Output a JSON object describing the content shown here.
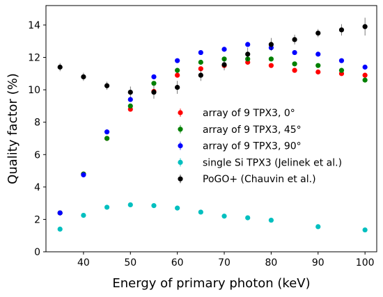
{
  "chart_data": {
    "type": "scatter",
    "xlabel": "Energy of primary photon (keV)",
    "ylabel": "Quality factor (%)",
    "xlim": [
      32,
      102.5
    ],
    "ylim": [
      0,
      15.2
    ],
    "x_ticks": [
      "40",
      "50",
      "60",
      "70",
      "80",
      "90",
      "100"
    ],
    "y_ticks": [
      "0",
      "2",
      "4",
      "6",
      "8",
      "10",
      "12",
      "14"
    ],
    "grid": false,
    "legend_position": "center-right",
    "series": [
      {
        "name": "array of 9 TPX3, 0$^\\circ$",
        "label": "array of 9 TPX3, 0°",
        "color": "#ff0000",
        "x": [
          35,
          40,
          45,
          50,
          55,
          60,
          65,
          70,
          75,
          80,
          85,
          90,
          95,
          100
        ],
        "y": [
          2.4,
          4.8,
          7.0,
          8.8,
          9.9,
          10.9,
          11.3,
          11.5,
          11.7,
          11.5,
          11.2,
          11.1,
          11.0,
          10.9
        ],
        "err": [
          0.05,
          0.08,
          0.1,
          0.1,
          0.1,
          0.1,
          0.1,
          0.1,
          0.1,
          0.1,
          0.1,
          0.1,
          0.1,
          0.1
        ]
      },
      {
        "name": "array of 9 TPX3, 45$^\\circ$",
        "label": "array of 9 TPX3, 45°",
        "color": "#008000",
        "x": [
          35,
          40,
          45,
          50,
          55,
          60,
          65,
          70,
          75,
          80,
          85,
          90,
          95,
          100
        ],
        "y": [
          2.4,
          4.8,
          7.0,
          9.0,
          10.4,
          11.2,
          11.7,
          11.9,
          11.9,
          11.9,
          11.6,
          11.5,
          11.2,
          10.6
        ],
        "err": [
          0.05,
          0.08,
          0.1,
          0.1,
          0.1,
          0.1,
          0.1,
          0.1,
          0.1,
          0.1,
          0.1,
          0.1,
          0.1,
          0.1
        ]
      },
      {
        "name": "array of 9 TPX3, 90$^\\circ$",
        "label": "array of 9 TPX3, 90°",
        "color": "#0000ff",
        "x": [
          35,
          40,
          45,
          50,
          55,
          60,
          65,
          70,
          75,
          80,
          85,
          90,
          95,
          100
        ],
        "y": [
          2.4,
          4.75,
          7.4,
          9.4,
          10.8,
          11.8,
          12.3,
          12.5,
          12.8,
          12.6,
          12.3,
          12.2,
          11.8,
          11.4
        ],
        "err": [
          0.05,
          0.08,
          0.1,
          0.1,
          0.1,
          0.1,
          0.1,
          0.1,
          0.1,
          0.1,
          0.1,
          0.1,
          0.1,
          0.1
        ]
      },
      {
        "name": "single Si TPX3 (Jelinek et al.)",
        "label": "single Si TPX3 (Jelinek et al.)",
        "color": "#00bfbf",
        "x": [
          35,
          40,
          45,
          50,
          55,
          60,
          65,
          70,
          75,
          80,
          90,
          100
        ],
        "y": [
          1.4,
          2.25,
          2.75,
          2.9,
          2.85,
          2.7,
          2.45,
          2.2,
          2.1,
          1.95,
          1.55,
          1.35
        ],
        "err": [
          0.03,
          0.03,
          0.03,
          0.03,
          0.03,
          0.03,
          0.03,
          0.03,
          0.03,
          0.03,
          0.03,
          0.03
        ]
      },
      {
        "name": "PoGO+ (Chauvin et al.)",
        "label": "PoGO+ (Chauvin et al.)",
        "color": "#000000",
        "x": [
          35,
          40,
          45,
          50,
          55,
          60,
          65,
          70,
          75,
          80,
          85,
          90,
          95,
          100
        ],
        "y": [
          11.4,
          10.8,
          10.25,
          9.85,
          9.85,
          10.15,
          10.9,
          11.55,
          12.2,
          12.8,
          13.1,
          13.5,
          13.7,
          13.9
        ],
        "err": [
          0.25,
          0.25,
          0.25,
          0.35,
          0.4,
          0.4,
          0.35,
          0.35,
          0.4,
          0.4,
          0.3,
          0.25,
          0.35,
          0.55
        ]
      }
    ]
  }
}
